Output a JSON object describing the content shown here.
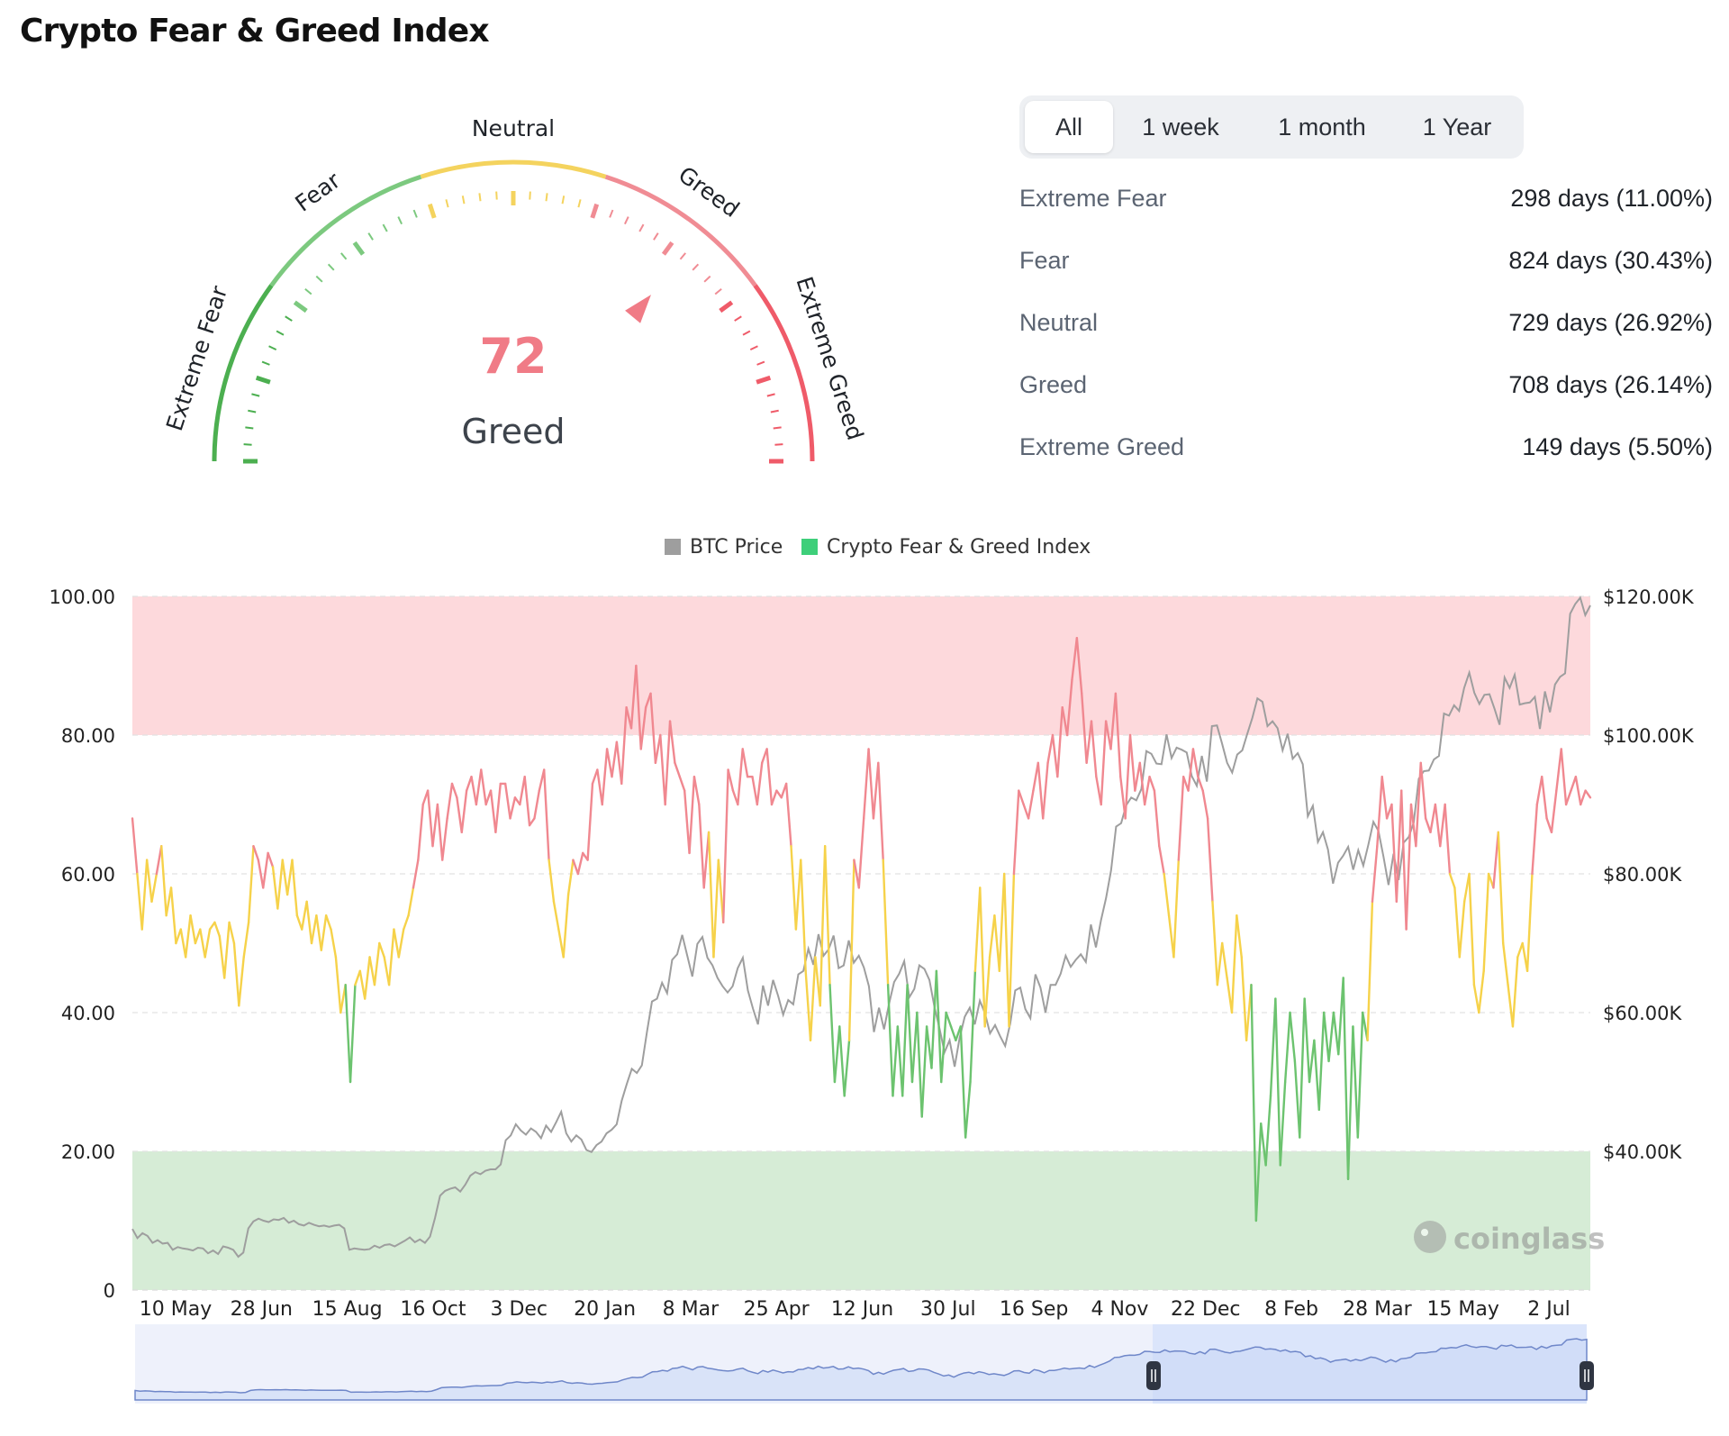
{
  "title": "Crypto Fear & Greed Index",
  "gauge": {
    "value": "72",
    "value_number": 72,
    "status": "Greed",
    "zone_labels": [
      "Extreme Fear",
      "Fear",
      "Neutral",
      "Greed",
      "Extreme Greed"
    ],
    "colors": {
      "extreme_fear": "#4caf50",
      "fear": "#7cc97f",
      "neutral": "#f4d35e",
      "greed": "#f08c94",
      "extreme_greed": "#ef5b69",
      "value": "#f07b86"
    }
  },
  "tabs": [
    {
      "label": "All",
      "active": true
    },
    {
      "label": "1 week",
      "active": false
    },
    {
      "label": "1 month",
      "active": false
    },
    {
      "label": "1 Year",
      "active": false
    }
  ],
  "stats": [
    {
      "label": "Extreme Fear",
      "value": "298 days (11.00%)"
    },
    {
      "label": "Fear",
      "value": "824 days (30.43%)"
    },
    {
      "label": "Neutral",
      "value": "729 days (26.92%)"
    },
    {
      "label": "Greed",
      "value": "708 days (26.14%)"
    },
    {
      "label": "Extreme Greed",
      "value": "149 days (5.50%)"
    }
  ],
  "watermark": "coinglass",
  "chart_data": {
    "type": "line",
    "legend": [
      {
        "name": "BTC Price",
        "color": "#9e9e9e"
      },
      {
        "name": "Crypto Fear & Greed Index",
        "color": "#3ecf7a"
      }
    ],
    "legend_position": "top-center",
    "x_ticks": [
      "10 May",
      "28 Jun",
      "15 Aug",
      "16 Oct",
      "3 Dec",
      "20 Jan",
      "8 Mar",
      "25 Apr",
      "12 Jun",
      "30 Jul",
      "16 Sep",
      "4 Nov",
      "22 Dec",
      "8 Feb",
      "28 Mar",
      "15 May",
      "2 Jul"
    ],
    "y_left": {
      "ylim": [
        0,
        100
      ],
      "ticks": [
        "0",
        "20.00",
        "40.00",
        "60.00",
        "80.00",
        "100.00"
      ]
    },
    "y_right": {
      "ylim": [
        20000,
        120000
      ],
      "ticks": [
        "$40.00K",
        "$60.00K",
        "$80.00K",
        "$100.00K",
        "$120.00K"
      ]
    },
    "bands": [
      {
        "from": 80,
        "to": 100,
        "color": "#fdd9dc"
      },
      {
        "from": 0,
        "to": 20,
        "color": "#d6ecd6"
      }
    ],
    "index_colors": {
      "below_40": "#6cc36f",
      "40_to_60": "#f6d24a",
      "above_60": "#f08890"
    },
    "series": [
      {
        "name": "Crypto Fear & Greed Index",
        "axis": "left",
        "values": [
          68,
          60,
          52,
          62,
          56,
          60,
          64,
          54,
          58,
          50,
          52,
          48,
          54,
          50,
          52,
          48,
          52,
          53,
          51,
          45,
          53,
          50,
          41,
          48,
          53,
          64,
          62,
          58,
          63,
          61,
          55,
          62,
          57,
          62,
          54,
          52,
          56,
          50,
          54,
          49,
          54,
          52,
          48,
          40,
          44,
          30,
          44,
          46,
          42,
          48,
          44,
          50,
          48,
          44,
          52,
          48,
          52,
          54,
          58,
          62,
          70,
          72,
          64,
          70,
          62,
          68,
          73,
          71,
          66,
          72,
          74,
          70,
          75,
          70,
          72,
          66,
          73,
          73,
          68,
          71,
          70,
          74,
          67,
          68,
          72,
          75,
          62,
          56,
          52,
          48,
          57,
          62,
          60,
          63,
          62,
          73,
          75,
          70,
          78,
          74,
          79,
          73,
          84,
          81,
          90,
          78,
          84,
          86,
          76,
          80,
          70,
          82,
          76,
          74,
          72,
          63,
          74,
          70,
          58,
          66,
          48,
          62,
          53,
          75,
          72,
          70,
          78,
          74,
          74,
          70,
          76,
          78,
          70,
          72,
          71,
          73,
          64,
          52,
          62,
          46,
          36,
          48,
          41,
          64,
          44,
          30,
          38,
          28,
          36,
          62,
          58,
          68,
          78,
          68,
          76,
          62,
          44,
          28,
          38,
          28,
          44,
          30,
          40,
          25,
          38,
          32,
          46,
          30,
          40,
          38,
          36,
          38,
          22,
          30,
          46,
          58,
          38,
          48,
          54,
          46,
          60,
          38,
          60,
          72,
          70,
          68,
          72,
          76,
          68,
          76,
          80,
          74,
          84,
          80,
          88,
          94,
          86,
          76,
          82,
          74,
          70,
          82,
          78,
          86,
          74,
          68,
          80,
          72,
          76,
          70,
          74,
          72,
          64,
          60,
          54,
          48,
          62,
          74,
          72,
          78,
          74,
          72,
          68,
          56,
          44,
          50,
          45,
          40,
          54,
          48,
          36,
          44,
          10,
          24,
          18,
          28,
          42,
          18,
          30,
          40,
          33,
          22,
          42,
          30,
          36,
          26,
          40,
          33,
          40,
          34,
          45,
          16,
          38,
          22,
          40,
          36,
          56,
          64,
          74,
          68,
          70,
          56,
          72,
          52,
          70,
          64,
          76,
          68,
          66,
          70,
          64,
          70,
          60,
          58,
          48,
          56,
          60,
          44,
          40,
          46,
          60,
          58,
          66,
          50,
          44,
          38,
          48,
          50,
          46,
          60,
          70,
          74,
          68,
          66,
          72,
          78,
          70,
          72,
          74,
          70,
          72,
          71
        ]
      },
      {
        "name": "BTC Price",
        "axis": "right",
        "values": [
          28800,
          27500,
          28200,
          27800,
          26800,
          27200,
          26700,
          26800,
          25800,
          26200,
          26000,
          25900,
          25700,
          26100,
          26000,
          25300,
          25700,
          25200,
          26300,
          26100,
          25800,
          24800,
          25400,
          28900,
          29900,
          30300,
          30000,
          29800,
          30200,
          30100,
          30400,
          29700,
          30000,
          29500,
          29300,
          29700,
          29400,
          29200,
          29300,
          29100,
          29300,
          29400,
          28900,
          25800,
          26000,
          25900,
          25800,
          25900,
          26400,
          26100,
          26500,
          26600,
          26300,
          26700,
          27100,
          27600,
          26900,
          27300,
          26800,
          27700,
          30400,
          33600,
          34300,
          34600,
          34800,
          34200,
          35200,
          36500,
          37000,
          36700,
          37200,
          37400,
          37400,
          38100,
          41600,
          42300,
          43900,
          43000,
          42400,
          43300,
          42800,
          41900,
          43700,
          42800,
          44200,
          45700,
          42600,
          41400,
          42300,
          41700,
          40200,
          39900,
          40900,
          41400,
          42600,
          43100,
          43900,
          47300,
          49700,
          51900,
          51300,
          52400,
          57200,
          61600,
          62000,
          64300,
          62800,
          67600,
          68400,
          71200,
          68200,
          65200,
          69900,
          70900,
          67900,
          66800,
          65000,
          63800,
          62900,
          63800,
          66400,
          67900,
          63200,
          60600,
          58300,
          63900,
          61000,
          64700,
          62400,
          59700,
          61800,
          61200,
          65500,
          66000,
          69200,
          66900,
          71300,
          68200,
          69100,
          71100,
          66400,
          66800,
          70400,
          67200,
          68200,
          66500,
          63800,
          57200,
          60700,
          57600,
          61300,
          64400,
          65600,
          67400,
          62200,
          63400,
          66800,
          66300,
          64700,
          60800,
          57700,
          54300,
          56000,
          52200,
          56400,
          59400,
          60700,
          58300,
          61700,
          59900,
          57000,
          58200,
          56600,
          55200,
          58400,
          63200,
          63600,
          60500,
          59200,
          65500,
          63600,
          60000,
          64000,
          64000,
          65600,
          68200,
          66600,
          67600,
          68400,
          67300,
          72700,
          69400,
          73300,
          76500,
          80500,
          86800,
          87300,
          89900,
          91000,
          90600,
          92200,
          97700,
          97300,
          95900,
          95800,
          100100,
          96700,
          98200,
          97900,
          97500,
          94100,
          92700,
          97000,
          93300,
          101300,
          101400,
          98800,
          96000,
          94600,
          97200,
          97800,
          100200,
          102500,
          105300,
          104800,
          101300,
          102000,
          101000,
          97800,
          100200,
          96600,
          97400,
          95800,
          88300,
          89800,
          84600,
          86000,
          83500,
          78600,
          81600,
          82600,
          83900,
          80600,
          83400,
          81200,
          84200,
          87500,
          86200,
          82500,
          78400,
          82900,
          79100,
          84500,
          85300,
          87400,
          93700,
          94800,
          94900,
          96500,
          97000,
          103100,
          102800,
          104300,
          103500,
          106800,
          109000,
          106100,
          104500,
          105800,
          105900,
          103800,
          101500,
          108300,
          106800,
          108700,
          104400,
          104600,
          104700,
          105500,
          100900,
          106300,
          103300,
          107300,
          108400,
          108900,
          117500,
          118900,
          119800,
          117300,
          118700
        ]
      }
    ]
  }
}
